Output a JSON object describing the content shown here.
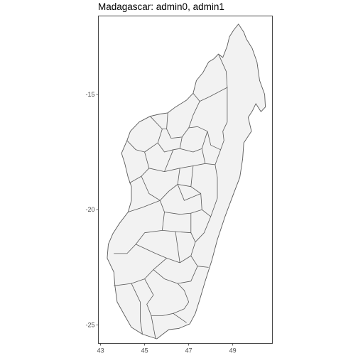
{
  "map": {
    "title": "Madagascar: admin0, admin1",
    "colors": {
      "land_fill": "#f2f2f2",
      "border": "#5a5a5a",
      "panel_border": "#333333",
      "tick": "#333333"
    },
    "axes": {
      "x": {
        "range": [
          42.9,
          50.8
        ],
        "ticks": [
          {
            "value": 43,
            "label": "43"
          },
          {
            "value": 45,
            "label": "45"
          },
          {
            "value": 47,
            "label": "47"
          },
          {
            "value": 49,
            "label": "49"
          }
        ]
      },
      "y": {
        "range": [
          -25.8,
          -11.6
        ],
        "ticks": [
          {
            "value": -15,
            "label": "-15"
          },
          {
            "value": -20,
            "label": "-20"
          },
          {
            "value": -25,
            "label": "-25"
          }
        ]
      }
    },
    "outline": [
      [
        49.26,
        -11.95
      ],
      [
        49.5,
        -12.3
      ],
      [
        49.62,
        -12.6
      ],
      [
        49.88,
        -13.0
      ],
      [
        50.1,
        -13.6
      ],
      [
        50.22,
        -14.4
      ],
      [
        50.45,
        -15.0
      ],
      [
        50.48,
        -15.55
      ],
      [
        50.28,
        -15.75
      ],
      [
        50.05,
        -15.4
      ],
      [
        49.9,
        -15.7
      ],
      [
        49.7,
        -16.0
      ],
      [
        49.85,
        -16.6
      ],
      [
        49.5,
        -17.1
      ],
      [
        49.45,
        -17.8
      ],
      [
        49.32,
        -18.6
      ],
      [
        49.0,
        -19.4
      ],
      [
        48.65,
        -20.3
      ],
      [
        48.3,
        -21.3
      ],
      [
        48.05,
        -22.2
      ],
      [
        47.75,
        -23.1
      ],
      [
        47.5,
        -23.9
      ],
      [
        47.3,
        -24.5
      ],
      [
        47.05,
        -24.95
      ],
      [
        46.55,
        -25.15
      ],
      [
        46.1,
        -25.2
      ],
      [
        45.55,
        -25.6
      ],
      [
        44.9,
        -25.4
      ],
      [
        44.4,
        -25.1
      ],
      [
        44.1,
        -24.6
      ],
      [
        43.75,
        -24.0
      ],
      [
        43.65,
        -23.3
      ],
      [
        43.6,
        -22.7
      ],
      [
        43.3,
        -22.1
      ],
      [
        43.35,
        -21.5
      ],
      [
        43.55,
        -21.05
      ],
      [
        43.85,
        -20.6
      ],
      [
        44.25,
        -20.1
      ],
      [
        44.4,
        -19.6
      ],
      [
        44.4,
        -19.0
      ],
      [
        44.25,
        -18.6
      ],
      [
        44.1,
        -18.0
      ],
      [
        43.95,
        -17.55
      ],
      [
        44.2,
        -17.0
      ],
      [
        44.35,
        -16.6
      ],
      [
        44.75,
        -16.2
      ],
      [
        45.25,
        -15.95
      ],
      [
        45.7,
        -15.85
      ],
      [
        46.05,
        -15.8
      ],
      [
        46.4,
        -15.55
      ],
      [
        46.9,
        -15.25
      ],
      [
        47.2,
        -14.95
      ],
      [
        47.35,
        -14.4
      ],
      [
        47.65,
        -14.05
      ],
      [
        47.9,
        -13.6
      ],
      [
        48.15,
        -13.45
      ],
      [
        48.35,
        -13.25
      ],
      [
        48.55,
        -13.4
      ],
      [
        48.75,
        -12.9
      ],
      [
        48.85,
        -12.5
      ],
      [
        49.05,
        -12.2
      ],
      [
        49.26,
        -11.95
      ]
    ],
    "admin1_borders": [
      [
        [
          48.35,
          -13.25
        ],
        [
          48.7,
          -14.0
        ],
        [
          48.75,
          -14.7
        ],
        [
          47.95,
          -15.1
        ],
        [
          47.5,
          -15.3
        ],
        [
          47.2,
          -14.95
        ]
      ],
      [
        [
          47.5,
          -15.3
        ],
        [
          47.2,
          -15.9
        ],
        [
          47.0,
          -16.45
        ],
        [
          46.7,
          -16.85
        ],
        [
          46.2,
          -16.9
        ],
        [
          46.0,
          -16.5
        ],
        [
          46.05,
          -15.8
        ]
      ],
      [
        [
          47.0,
          -16.45
        ],
        [
          47.4,
          -16.4
        ],
        [
          47.85,
          -16.6
        ],
        [
          48.0,
          -17.2
        ],
        [
          48.45,
          -17.4
        ],
        [
          48.6,
          -17.0
        ],
        [
          48.55,
          -16.6
        ],
        [
          48.75,
          -16.2
        ],
        [
          48.75,
          -15.5
        ],
        [
          48.75,
          -14.7
        ]
      ],
      [
        [
          45.25,
          -15.95
        ],
        [
          45.8,
          -16.5
        ],
        [
          46.0,
          -16.5
        ]
      ],
      [
        [
          45.8,
          -16.5
        ],
        [
          45.6,
          -17.1
        ],
        [
          45.0,
          -17.5
        ],
        [
          44.6,
          -17.4
        ],
        [
          44.2,
          -17.0
        ]
      ],
      [
        [
          45.6,
          -17.1
        ],
        [
          45.9,
          -17.5
        ],
        [
          46.3,
          -17.4
        ],
        [
          46.6,
          -17.35
        ],
        [
          46.7,
          -16.85
        ]
      ],
      [
        [
          46.6,
          -17.35
        ],
        [
          47.2,
          -17.5
        ],
        [
          47.6,
          -17.35
        ],
        [
          47.85,
          -16.6
        ]
      ],
      [
        [
          47.6,
          -17.35
        ],
        [
          47.75,
          -18.0
        ],
        [
          48.2,
          -18.05
        ],
        [
          48.45,
          -17.4
        ]
      ],
      [
        [
          48.2,
          -18.05
        ],
        [
          48.3,
          -18.6
        ],
        [
          48.3,
          -19.5
        ],
        [
          48.0,
          -20.3
        ],
        [
          47.7,
          -21.0
        ],
        [
          47.3,
          -21.4
        ]
      ],
      [
        [
          45.0,
          -17.5
        ],
        [
          45.2,
          -18.2
        ],
        [
          44.85,
          -18.55
        ],
        [
          44.3,
          -18.85
        ]
      ],
      [
        [
          45.2,
          -18.2
        ],
        [
          45.9,
          -18.35
        ],
        [
          46.3,
          -17.4
        ]
      ],
      [
        [
          45.9,
          -18.35
        ],
        [
          46.6,
          -18.2
        ],
        [
          47.2,
          -18.1
        ],
        [
          47.75,
          -18.0
        ]
      ],
      [
        [
          46.6,
          -18.2
        ],
        [
          46.5,
          -18.9
        ],
        [
          46.1,
          -19.2
        ],
        [
          45.7,
          -19.6
        ],
        [
          45.2,
          -19.3
        ],
        [
          44.85,
          -18.55
        ]
      ],
      [
        [
          46.5,
          -18.9
        ],
        [
          47.1,
          -19.0
        ],
        [
          47.55,
          -19.3
        ],
        [
          47.6,
          -20.0
        ],
        [
          48.0,
          -20.3
        ]
      ],
      [
        [
          47.2,
          -18.1
        ],
        [
          47.1,
          -19.0
        ]
      ],
      [
        [
          46.5,
          -18.9
        ],
        [
          46.8,
          -19.6
        ],
        [
          47.55,
          -19.3
        ]
      ],
      [
        [
          45.7,
          -19.6
        ],
        [
          45.9,
          -20.1
        ],
        [
          46.6,
          -20.2
        ],
        [
          47.1,
          -20.15
        ],
        [
          47.6,
          -20.0
        ]
      ],
      [
        [
          44.25,
          -20.1
        ],
        [
          44.9,
          -19.9
        ],
        [
          45.7,
          -19.6
        ]
      ],
      [
        [
          45.9,
          -20.1
        ],
        [
          45.8,
          -20.9
        ],
        [
          45.0,
          -21.0
        ],
        [
          44.6,
          -21.5
        ],
        [
          44.2,
          -21.9
        ],
        [
          43.6,
          -21.9
        ]
      ],
      [
        [
          45.8,
          -20.9
        ],
        [
          46.4,
          -20.95
        ],
        [
          47.1,
          -21.0
        ],
        [
          47.1,
          -20.15
        ]
      ],
      [
        [
          47.1,
          -21.0
        ],
        [
          47.3,
          -21.4
        ],
        [
          47.1,
          -22.0
        ],
        [
          46.6,
          -22.3
        ],
        [
          46.0,
          -22.1
        ],
        [
          45.5,
          -21.9
        ],
        [
          44.6,
          -21.5
        ]
      ],
      [
        [
          46.4,
          -20.95
        ],
        [
          46.6,
          -22.3
        ]
      ],
      [
        [
          47.1,
          -22.0
        ],
        [
          47.4,
          -22.45
        ],
        [
          47.9,
          -22.5
        ]
      ],
      [
        [
          46.0,
          -22.1
        ],
        [
          45.4,
          -22.6
        ],
        [
          45.0,
          -23.0
        ],
        [
          44.4,
          -23.2
        ],
        [
          43.6,
          -23.3
        ]
      ],
      [
        [
          45.4,
          -22.6
        ],
        [
          45.9,
          -23.0
        ],
        [
          46.5,
          -23.2
        ],
        [
          47.1,
          -23.1
        ],
        [
          47.4,
          -22.45
        ]
      ],
      [
        [
          46.5,
          -23.2
        ],
        [
          46.8,
          -23.5
        ],
        [
          47.0,
          -24.0
        ],
        [
          46.8,
          -24.3
        ],
        [
          46.3,
          -24.5
        ]
      ],
      [
        [
          45.0,
          -23.0
        ],
        [
          45.4,
          -23.7
        ],
        [
          45.1,
          -24.1
        ],
        [
          45.3,
          -24.6
        ],
        [
          45.8,
          -24.6
        ],
        [
          46.3,
          -24.5
        ],
        [
          46.9,
          -24.9
        ]
      ],
      [
        [
          45.3,
          -24.6
        ],
        [
          45.5,
          -25.6
        ]
      ],
      [
        [
          44.4,
          -23.2
        ],
        [
          44.8,
          -24.0
        ],
        [
          44.8,
          -24.8
        ],
        [
          44.9,
          -25.4
        ]
      ]
    ]
  }
}
